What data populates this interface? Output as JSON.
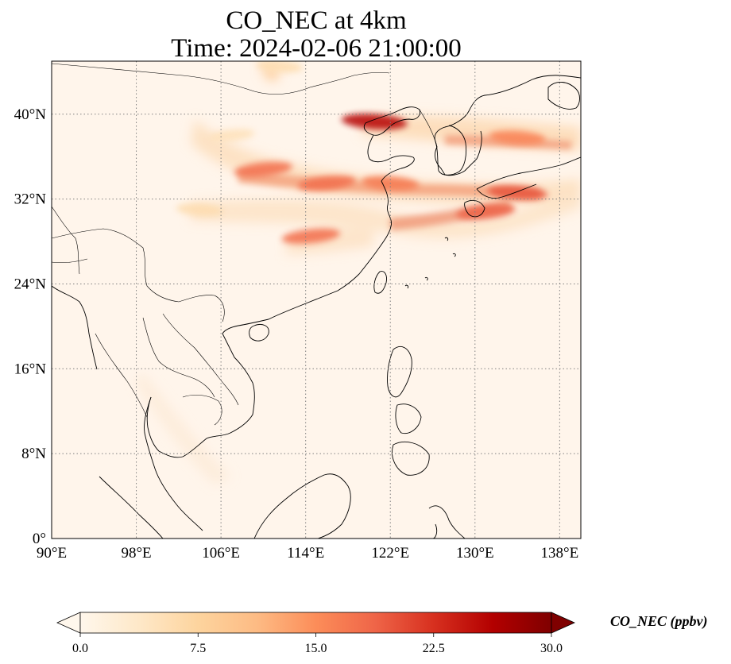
{
  "title": {
    "line1": "CO_NEC at 4km",
    "line2": "Time: 2024-02-06 21:00:00"
  },
  "map": {
    "extent": {
      "lon_min": 90,
      "lon_max": 140,
      "lat_min": 0,
      "lat_max": 45
    },
    "gridlines": true,
    "gridline_style": "dotted",
    "x_ticks": [
      {
        "lon": 90,
        "label": "90°E"
      },
      {
        "lon": 98,
        "label": "98°E"
      },
      {
        "lon": 106,
        "label": "106°E"
      },
      {
        "lon": 114,
        "label": "114°E"
      },
      {
        "lon": 122,
        "label": "122°E"
      },
      {
        "lon": 130,
        "label": "130°E"
      },
      {
        "lon": 138,
        "label": "138°E"
      }
    ],
    "y_ticks": [
      {
        "lat": 0,
        "label": "0°"
      },
      {
        "lat": 8,
        "label": "8°N"
      },
      {
        "lat": 16,
        "label": "16°N"
      },
      {
        "lat": 24,
        "label": "24°N"
      },
      {
        "lat": 32,
        "label": "32°N"
      },
      {
        "lat": 40,
        "label": "40°N"
      }
    ],
    "background_color": "#fff5eb",
    "coastline_color": "#000000"
  },
  "chart_data": {
    "type": "heatmap",
    "variable": "CO_NEC",
    "units": "ppbv",
    "vmin": 0.0,
    "vmax": 30.0,
    "colormap": "OrRd",
    "hotspots": [
      {
        "lon": 120.5,
        "lat": 39.3,
        "value": 26
      },
      {
        "lon": 116,
        "lat": 33.5,
        "value": 18
      },
      {
        "lon": 122,
        "lat": 33.5,
        "value": 17
      },
      {
        "lon": 110,
        "lat": 34.8,
        "value": 18
      },
      {
        "lon": 134,
        "lat": 32.6,
        "value": 20
      },
      {
        "lon": 131,
        "lat": 30.8,
        "value": 19
      },
      {
        "lon": 134,
        "lat": 37.8,
        "value": 16
      },
      {
        "lon": 114.5,
        "lat": 28.5,
        "value": 18
      },
      {
        "lon": 104,
        "lat": 31,
        "value": 6
      },
      {
        "lon": 107,
        "lat": 38,
        "value": 5
      },
      {
        "lon": 111.5,
        "lat": 44.5,
        "value": 6
      }
    ]
  },
  "colorbar": {
    "label": "CO_NEC (ppbv)",
    "ticks": [
      "0.0",
      "7.5",
      "15.0",
      "22.5",
      "30.0"
    ],
    "extend": "both",
    "colors": [
      "#fff7ec",
      "#fee8c8",
      "#fdd49e",
      "#fdbb84",
      "#fc8d59",
      "#ef6548",
      "#d7301f",
      "#b30000",
      "#7f0000"
    ]
  }
}
